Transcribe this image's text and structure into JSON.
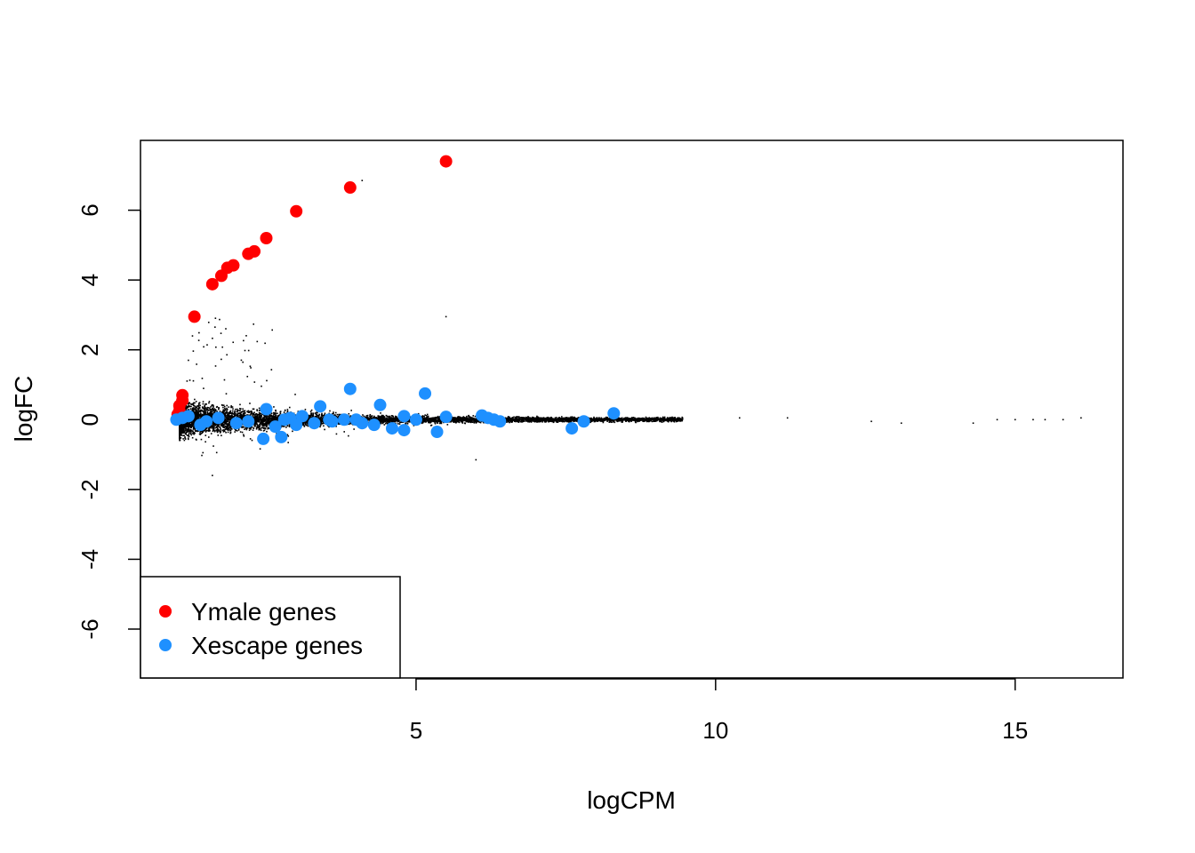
{
  "chart_data": {
    "type": "scatter",
    "title": "",
    "xlabel": "logCPM",
    "ylabel": "logFC",
    "xlim": [
      0.4,
      16.8
    ],
    "ylim": [
      -7.4,
      8.0
    ],
    "x_ticks": [
      5,
      10,
      15
    ],
    "y_ticks": [
      -6,
      -4,
      -2,
      0,
      2,
      4,
      6
    ],
    "grid": false,
    "legend_position": "bottom-left",
    "legend": [
      {
        "label": "Ymale genes",
        "color": "#ff0000"
      },
      {
        "label": "Xescape genes",
        "color": "#1e90ff"
      }
    ],
    "background_series": {
      "color": "#000000",
      "description_points": [
        [
          1.5,
          0.0
        ],
        [
          3.0,
          0.05
        ],
        [
          5.0,
          0.0
        ],
        [
          7.0,
          0.0
        ],
        [
          9.0,
          0.05
        ],
        [
          10.4,
          0.05
        ],
        [
          11.2,
          0.05
        ],
        [
          12.6,
          -0.05
        ],
        [
          13.1,
          -0.1
        ],
        [
          14.3,
          -0.1
        ],
        [
          14.7,
          0.0
        ],
        [
          15.0,
          0.0
        ],
        [
          15.3,
          0.0
        ],
        [
          15.5,
          0.0
        ],
        [
          15.8,
          0.0
        ],
        [
          16.1,
          0.05
        ],
        [
          4.1,
          6.85
        ],
        [
          5.5,
          2.95
        ],
        [
          6.0,
          -1.15
        ],
        [
          1.6,
          -1.6
        ],
        [
          1.2,
          1.7
        ]
      ]
    },
    "series": [
      {
        "name": "Ymale genes",
        "color": "#ff0000",
        "points": [
          [
            5.5,
            7.4
          ],
          [
            3.9,
            6.65
          ],
          [
            3.0,
            5.97
          ],
          [
            2.5,
            5.2
          ],
          [
            2.3,
            4.82
          ],
          [
            2.2,
            4.75
          ],
          [
            1.95,
            4.42
          ],
          [
            1.85,
            4.35
          ],
          [
            1.75,
            4.12
          ],
          [
            1.6,
            3.88
          ],
          [
            1.3,
            2.95
          ],
          [
            1.1,
            0.7
          ],
          [
            1.1,
            0.55
          ],
          [
            1.05,
            0.4
          ],
          [
            1.05,
            0.25
          ],
          [
            1.02,
            0.15
          ]
        ]
      },
      {
        "name": "Xescape genes",
        "color": "#1e90ff",
        "points": [
          [
            3.9,
            0.88
          ],
          [
            5.15,
            0.75
          ],
          [
            4.4,
            0.42
          ],
          [
            3.4,
            0.38
          ],
          [
            8.3,
            0.18
          ],
          [
            2.5,
            0.3
          ],
          [
            1.1,
            0.05
          ],
          [
            1.2,
            0.1
          ],
          [
            1.0,
            0.0
          ],
          [
            1.5,
            -0.05
          ],
          [
            1.7,
            0.05
          ],
          [
            2.0,
            -0.1
          ],
          [
            2.2,
            -0.05
          ],
          [
            2.45,
            -0.55
          ],
          [
            2.75,
            -0.5
          ],
          [
            2.9,
            0.05
          ],
          [
            3.1,
            0.1
          ],
          [
            3.3,
            -0.1
          ],
          [
            3.6,
            -0.05
          ],
          [
            3.8,
            0.0
          ],
          [
            4.1,
            -0.1
          ],
          [
            4.3,
            -0.15
          ],
          [
            4.6,
            -0.25
          ],
          [
            4.8,
            -0.3
          ],
          [
            4.8,
            0.1
          ],
          [
            5.35,
            -0.35
          ],
          [
            5.5,
            0.08
          ],
          [
            6.1,
            0.12
          ],
          [
            6.2,
            0.05
          ],
          [
            6.3,
            0.0
          ],
          [
            6.4,
            -0.05
          ],
          [
            7.6,
            -0.25
          ],
          [
            7.8,
            -0.05
          ],
          [
            2.65,
            -0.2
          ],
          [
            3.0,
            -0.15
          ],
          [
            3.55,
            0.0
          ],
          [
            4.0,
            0.0
          ],
          [
            1.4,
            -0.15
          ],
          [
            2.8,
            0.0
          ],
          [
            5.0,
            0.0
          ]
        ]
      }
    ]
  }
}
